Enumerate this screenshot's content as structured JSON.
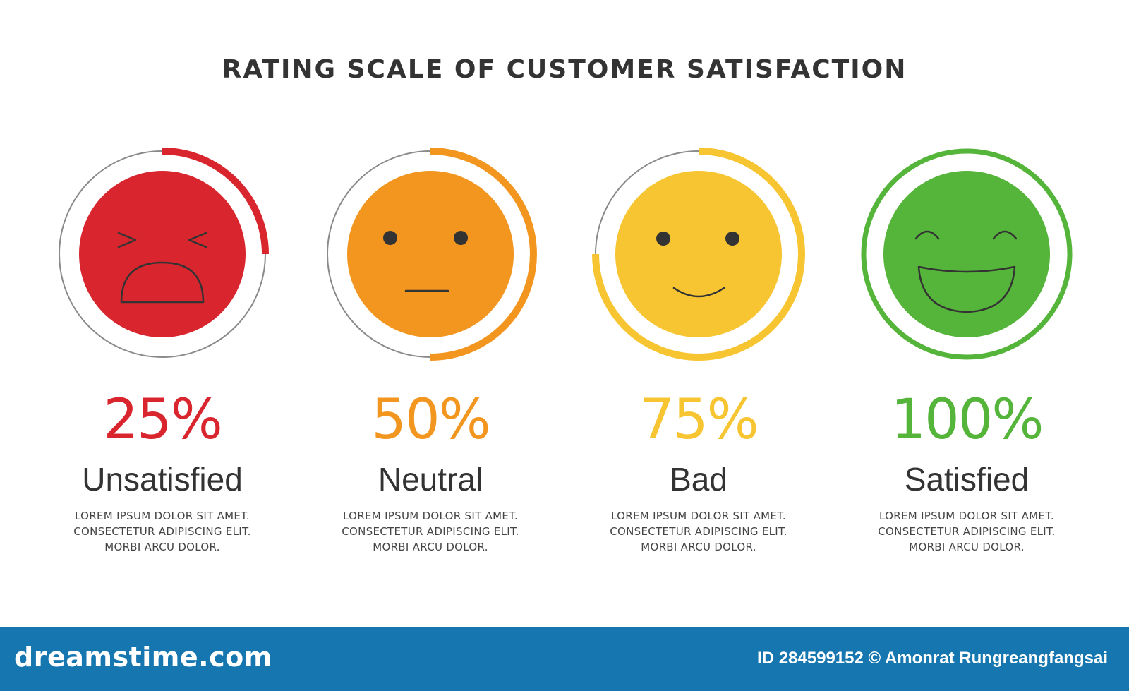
{
  "title": "RATING SCALE OF CUSTOMER SATISFACTION",
  "items": [
    {
      "percent_text": "25%",
      "fraction": 0.25,
      "label": "Unsatisfied",
      "face": "crying-face",
      "color": "#d9262e",
      "desc": [
        "LOREM IPSUM DOLOR SIT AMET.",
        "CONSECTETUR ADIPISCING ELIT.",
        "MORBI ARCU DOLOR."
      ]
    },
    {
      "percent_text": "50%",
      "fraction": 0.5,
      "label": "Neutral",
      "face": "neutral-face",
      "color": "#f29620",
      "desc": [
        "LOREM IPSUM DOLOR SIT AMET.",
        "CONSECTETUR ADIPISCING ELIT.",
        "MORBI ARCU DOLOR."
      ]
    },
    {
      "percent_text": "75%",
      "fraction": 0.75,
      "label": "Bad",
      "face": "smiling-face",
      "color": "#f7c531",
      "desc": [
        "LOREM IPSUM DOLOR SIT AMET.",
        "CONSECTETUR ADIPISCING ELIT.",
        "MORBI ARCU DOLOR."
      ]
    },
    {
      "percent_text": "100%",
      "fraction": 1.0,
      "label": "Satisfied",
      "face": "laughing-face",
      "color": "#55b43a",
      "desc": [
        "LOREM IPSUM DOLOR SIT AMET.",
        "CONSECTETUR ADIPISCING ELIT.",
        "MORBI ARCU DOLOR."
      ]
    }
  ],
  "colors": {
    "ring_track": "#8a8a8a",
    "face_line": "#333333",
    "footer_bg": "#1576b0"
  },
  "footer": {
    "brand": "dreamstime.com",
    "credit": "ID 284599152 © Amonrat Rungreangfangsai"
  }
}
